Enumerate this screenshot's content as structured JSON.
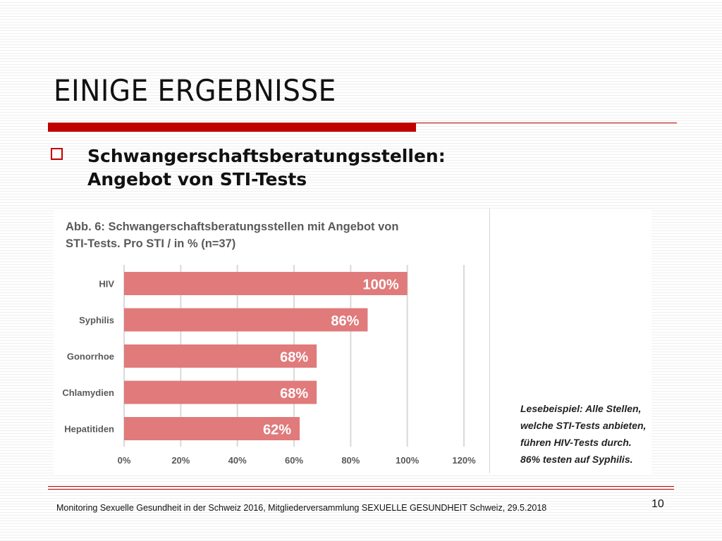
{
  "slide": {
    "title": "EINIGE ERGEBNISSE",
    "bullet_line1": "Schwangerschaftsberatungsstellen:",
    "bullet_line2": "Angebot von STI-Tests",
    "footer": "Monitoring Sexuelle Gesundheit in der Schweiz 2016, Mitgliederversammlung SEXUELLE GESUNDHEIT Schweiz, 29.5.2018",
    "page_number": "10",
    "accent_color": "#c00000"
  },
  "chart_data": {
    "type": "bar",
    "orientation": "horizontal",
    "title_line1": "Abb. 6: Schwangerschaftsberatungsstellen mit Angebot von",
    "title_line2": "STI-Tests. Pro STI /  in %  (n=37)",
    "categories": [
      "HIV",
      "Syphilis",
      "Gonorrhoe",
      "Chlamydien",
      "Hepatitiden"
    ],
    "values": [
      100,
      86,
      68,
      68,
      62
    ],
    "data_labels": [
      "100%",
      "86%",
      "68%",
      "68%",
      "62%"
    ],
    "xlim": [
      0,
      120
    ],
    "x_ticks": [
      0,
      20,
      40,
      60,
      80,
      100,
      120
    ],
    "x_tick_labels": [
      "0%",
      "20%",
      "40%",
      "60%",
      "80%",
      "100%",
      "120%"
    ],
    "grid": "vertical",
    "bar_color": "#e07a7b",
    "reading_example": [
      "Lesebeispiel: Alle Stellen,",
      "welche STI-Tests anbieten,",
      "führen HIV-Tests durch.",
      "86% testen auf Syphilis."
    ]
  }
}
